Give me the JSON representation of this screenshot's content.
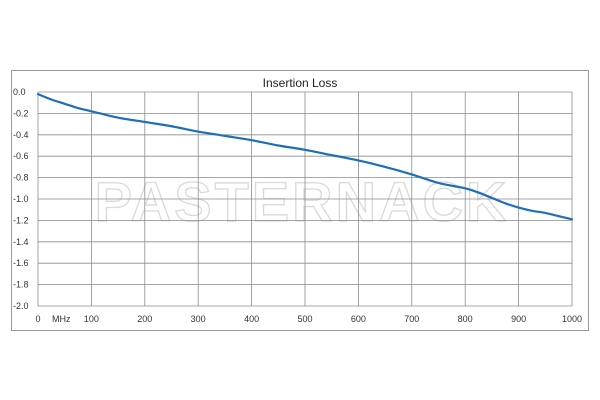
{
  "watermark": "PASTERNACK",
  "colors": {
    "line": "#1f6fb7",
    "grid": "#8c8c8c",
    "frame": "#9a9a9a"
  },
  "chart_data": {
    "type": "line",
    "title": "Insertion Loss",
    "xlabel": "",
    "ylabel": "",
    "x_unit_label": "MHz",
    "xlim": [
      0,
      1000
    ],
    "ylim": [
      -2.0,
      0.0
    ],
    "x_ticks": [
      0,
      100,
      200,
      300,
      400,
      500,
      600,
      700,
      800,
      900,
      1000
    ],
    "x_tick_labels": [
      "0",
      "100",
      "200",
      "300",
      "400",
      "500",
      "600",
      "700",
      "800",
      "900",
      "1000"
    ],
    "y_ticks": [
      0.0,
      -0.2,
      -0.4,
      -0.6,
      -0.8,
      -1.0,
      -1.2,
      -1.4,
      -1.6,
      -1.8,
      -2.0
    ],
    "y_tick_labels": [
      "0.0",
      "-0.2",
      "-0.4",
      "-0.6",
      "-0.8",
      "-1.0",
      "-1.2",
      "-1.4",
      "-1.6",
      "-1.8",
      "-2.0"
    ],
    "grid": true,
    "series": [
      {
        "x": [
          0,
          25,
          50,
          75,
          100,
          150,
          200,
          250,
          300,
          350,
          400,
          450,
          500,
          550,
          600,
          650,
          700,
          750,
          800,
          825,
          850,
          875,
          900,
          925,
          950,
          975,
          1000
        ],
        "y": [
          -0.02,
          -0.07,
          -0.11,
          -0.15,
          -0.18,
          -0.24,
          -0.28,
          -0.32,
          -0.37,
          -0.41,
          -0.45,
          -0.5,
          -0.54,
          -0.59,
          -0.64,
          -0.7,
          -0.77,
          -0.85,
          -0.9,
          -0.94,
          -0.99,
          -1.04,
          -1.08,
          -1.11,
          -1.13,
          -1.16,
          -1.19
        ]
      }
    ]
  }
}
